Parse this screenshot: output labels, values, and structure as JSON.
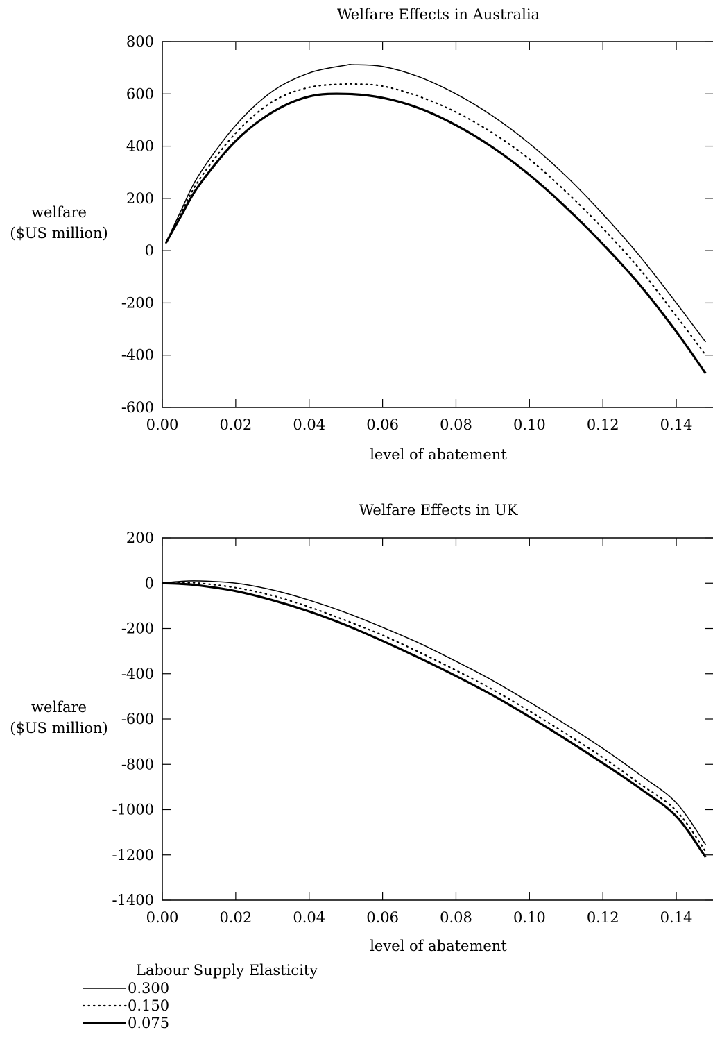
{
  "chart_data": [
    {
      "type": "line",
      "title": "Welfare Effects in Australia",
      "xlabel": "level of abatement",
      "ylabel": [
        "welfare",
        "($US million)"
      ],
      "xlim": [
        0.0,
        0.15
      ],
      "ylim": [
        -600,
        800
      ],
      "xticks": [
        0.0,
        0.02,
        0.04,
        0.06,
        0.08,
        0.1,
        0.12,
        0.14
      ],
      "xtick_labels": [
        "0.00",
        "0.02",
        "0.04",
        "0.06",
        "0.08",
        "0.10",
        "0.12",
        "0.14"
      ],
      "yticks": [
        -600,
        -400,
        -200,
        0,
        200,
        400,
        600,
        800
      ],
      "ytick_labels": [
        "-600",
        "-400",
        "-200",
        "0",
        "200",
        "400",
        "600",
        "800"
      ],
      "grid": false,
      "legend": "bottom-left (shared)",
      "series": [
        {
          "name": "0.300",
          "style": "solid",
          "x": [
            0.001,
            0.005,
            0.01,
            0.02,
            0.03,
            0.04,
            0.05,
            0.052,
            0.06,
            0.07,
            0.08,
            0.09,
            0.1,
            0.11,
            0.12,
            0.13,
            0.14,
            0.148
          ],
          "y": [
            30,
            150,
            290,
            480,
            610,
            680,
            710,
            712,
            705,
            665,
            600,
            515,
            410,
            285,
            140,
            -20,
            -200,
            -350
          ]
        },
        {
          "name": "0.150",
          "style": "dotted",
          "x": [
            0.001,
            0.005,
            0.01,
            0.02,
            0.03,
            0.04,
            0.05,
            0.052,
            0.06,
            0.07,
            0.08,
            0.09,
            0.1,
            0.11,
            0.12,
            0.13,
            0.14,
            0.148
          ],
          "y": [
            30,
            140,
            270,
            450,
            570,
            625,
            638,
            638,
            630,
            590,
            530,
            450,
            350,
            225,
            85,
            -70,
            -250,
            -400
          ]
        },
        {
          "name": "0.075",
          "style": "thick",
          "x": [
            0.001,
            0.005,
            0.01,
            0.02,
            0.03,
            0.04,
            0.05,
            0.06,
            0.07,
            0.08,
            0.09,
            0.1,
            0.11,
            0.12,
            0.13,
            0.14,
            0.148
          ],
          "y": [
            30,
            130,
            250,
            420,
            530,
            590,
            600,
            585,
            545,
            480,
            395,
            290,
            165,
            25,
            -130,
            -310,
            -470
          ]
        }
      ]
    },
    {
      "type": "line",
      "title": "Welfare Effects in UK",
      "xlabel": "level of abatement",
      "ylabel": [
        "welfare",
        "($US million)"
      ],
      "xlim": [
        0.0,
        0.15
      ],
      "ylim": [
        -1400,
        200
      ],
      "xticks": [
        0.0,
        0.02,
        0.04,
        0.06,
        0.08,
        0.1,
        0.12,
        0.14
      ],
      "xtick_labels": [
        "0.00",
        "0.02",
        "0.04",
        "0.06",
        "0.08",
        "0.10",
        "0.12",
        "0.14"
      ],
      "yticks": [
        -1400,
        -1200,
        -1000,
        -800,
        -600,
        -400,
        -200,
        0,
        200
      ],
      "ytick_labels": [
        "-1400",
        "-1200",
        "-1000",
        "-800",
        "-600",
        "-400",
        "-200",
        "0",
        "200"
      ],
      "grid": false,
      "legend": "bottom-left (shared)",
      "series": [
        {
          "name": "0.300",
          "style": "solid",
          "x": [
            0.0,
            0.005,
            0.01,
            0.02,
            0.03,
            0.04,
            0.05,
            0.06,
            0.07,
            0.08,
            0.09,
            0.1,
            0.11,
            0.12,
            0.13,
            0.14,
            0.148
          ],
          "y": [
            0,
            8,
            10,
            0,
            -30,
            -75,
            -130,
            -195,
            -265,
            -345,
            -430,
            -525,
            -625,
            -730,
            -845,
            -970,
            -1155
          ]
        },
        {
          "name": "0.150",
          "style": "dotted",
          "x": [
            0.0,
            0.005,
            0.01,
            0.02,
            0.03,
            0.04,
            0.05,
            0.06,
            0.07,
            0.08,
            0.09,
            0.1,
            0.11,
            0.12,
            0.13,
            0.14,
            0.148
          ],
          "y": [
            0,
            2,
            0,
            -20,
            -55,
            -105,
            -165,
            -230,
            -305,
            -385,
            -470,
            -565,
            -665,
            -770,
            -885,
            -1005,
            -1185
          ]
        },
        {
          "name": "0.075",
          "style": "thick",
          "x": [
            0.0,
            0.005,
            0.01,
            0.02,
            0.03,
            0.04,
            0.05,
            0.06,
            0.07,
            0.08,
            0.09,
            0.1,
            0.11,
            0.12,
            0.13,
            0.14,
            0.148
          ],
          "y": [
            0,
            -3,
            -10,
            -35,
            -75,
            -125,
            -185,
            -255,
            -330,
            -410,
            -495,
            -590,
            -690,
            -795,
            -905,
            -1030,
            -1210
          ]
        }
      ]
    }
  ],
  "legend": {
    "title": "Labour Supply Elasticity",
    "entries": [
      {
        "label": "0.300",
        "style": "solid"
      },
      {
        "label": "0.150",
        "style": "dotted"
      },
      {
        "label": "0.075",
        "style": "thick"
      }
    ]
  }
}
